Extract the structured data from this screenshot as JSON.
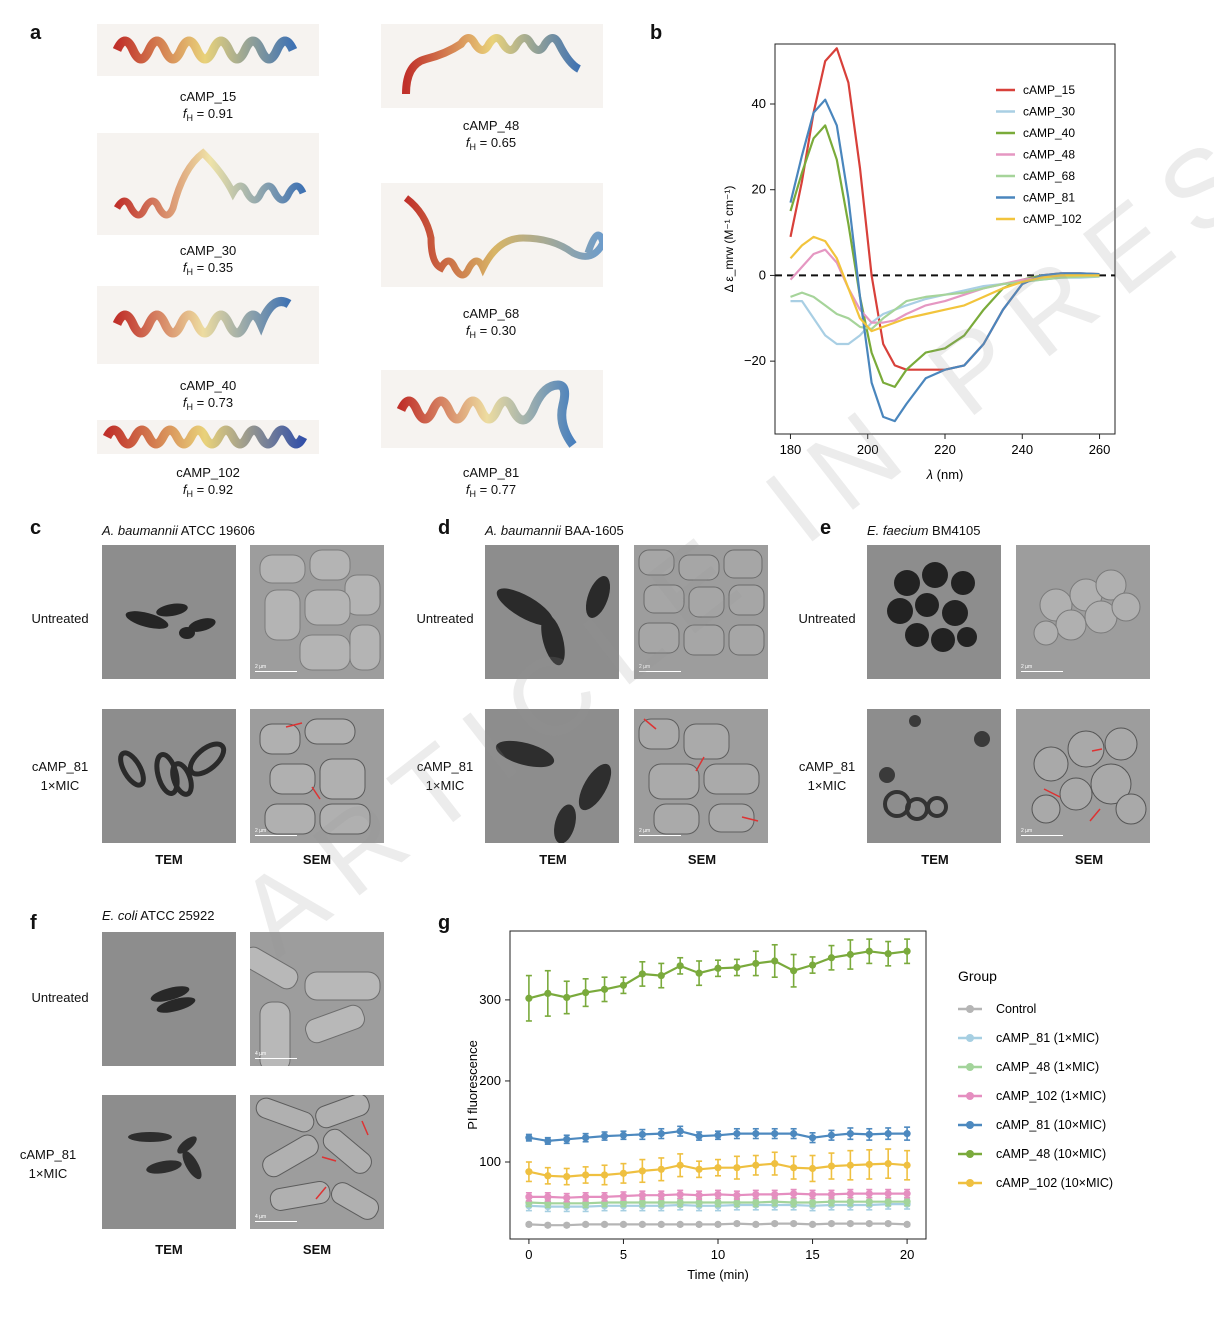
{
  "panels": {
    "a": "a",
    "b": "b",
    "c": "c",
    "d": "d",
    "e": "e",
    "f": "f",
    "g": "g"
  },
  "panel_a": {
    "structures": [
      {
        "name": "cAMP_15",
        "fh_label": "f",
        "fh_sub": "H",
        "fh_value": "= 0.91"
      },
      {
        "name": "cAMP_30",
        "fh_label": "f",
        "fh_sub": "H",
        "fh_value": "= 0.35"
      },
      {
        "name": "cAMP_40",
        "fh_label": "f",
        "fh_sub": "H",
        "fh_value": "= 0.73"
      },
      {
        "name": "cAMP_102",
        "fh_label": "f",
        "fh_sub": "H",
        "fh_value": "= 0.92"
      },
      {
        "name": "cAMP_48",
        "fh_label": "f",
        "fh_sub": "H",
        "fh_value": "= 0.65"
      },
      {
        "name": "cAMP_68",
        "fh_label": "f",
        "fh_sub": "H",
        "fh_value": "= 0.30"
      },
      {
        "name": "cAMP_81",
        "fh_label": "f",
        "fh_sub": "H",
        "fh_value": "= 0.77"
      }
    ]
  },
  "micrographs": {
    "row_untreated": "Untreated",
    "row_treated_line1": "cAMP_81",
    "row_treated_line2": "1×MIC",
    "col_tem": "TEM",
    "col_sem": "SEM",
    "scale_2um": "2 µm",
    "scale_4um": "4 µm",
    "strains": [
      {
        "genus": "A. baumannii",
        "strain": " ATCC 19606"
      },
      {
        "genus": "A. baumannii",
        "strain": " BAA-1605"
      },
      {
        "genus": "E. faecium",
        "strain": " BM4105"
      },
      {
        "genus": "E. coli",
        "strain": " ATCC 25922"
      }
    ]
  },
  "watermark": "ARTICLE IN PRESS",
  "chart_data": [
    {
      "panel": "b",
      "type": "line",
      "title": "",
      "xlabel": "λ (nm)",
      "ylabel": "Δ ε_mrw (M⁻¹ cm⁻¹)",
      "xlim": [
        176,
        264
      ],
      "ylim": [
        -37,
        54
      ],
      "xticks": [
        180,
        200,
        220,
        240,
        260
      ],
      "yticks": [
        -20,
        0,
        20,
        40
      ],
      "zero_line": "dashed",
      "legend_position": "top-right",
      "series": [
        {
          "name": "cAMP_15",
          "color": "#d8403a",
          "x": [
            180,
            183,
            186,
            189,
            192,
            195,
            198,
            201,
            204,
            207,
            210,
            215,
            220,
            225,
            230,
            235,
            240,
            245,
            250,
            255,
            260
          ],
          "y": [
            9,
            22,
            38,
            50,
            53,
            45,
            25,
            0,
            -16,
            -21,
            -22,
            -22,
            -22,
            -21,
            -16,
            -8,
            -2,
            0,
            0.5,
            0.5,
            0.3
          ]
        },
        {
          "name": "cAMP_30",
          "color": "#a9cfe4",
          "x": [
            180,
            183,
            186,
            189,
            192,
            195,
            198,
            201,
            204,
            207,
            210,
            215,
            220,
            225,
            230,
            235,
            240,
            245,
            250,
            255,
            260
          ],
          "y": [
            -6,
            -6,
            -10,
            -14,
            -16,
            -16,
            -14,
            -11,
            -9,
            -8,
            -7,
            -5.5,
            -4.5,
            -3.5,
            -2.5,
            -2,
            -1.5,
            -1,
            -0.5,
            -0.5,
            -0.3
          ]
        },
        {
          "name": "cAMP_40",
          "color": "#7aab3a",
          "x": [
            180,
            183,
            186,
            189,
            192,
            195,
            198,
            201,
            204,
            207,
            210,
            215,
            220,
            225,
            230,
            235,
            240,
            245,
            250,
            255,
            260
          ],
          "y": [
            15,
            24,
            32,
            35,
            27,
            12,
            -5,
            -18,
            -25,
            -26,
            -22,
            -18,
            -17,
            -14,
            -8,
            -3,
            -1,
            0,
            0,
            0,
            0
          ]
        },
        {
          "name": "cAMP_48",
          "color": "#e597c2",
          "x": [
            180,
            183,
            186,
            189,
            192,
            195,
            198,
            201,
            204,
            207,
            210,
            215,
            220,
            225,
            230,
            235,
            240,
            245,
            250,
            255,
            260
          ],
          "y": [
            -1,
            2,
            5,
            6,
            3,
            -3,
            -8,
            -11,
            -11,
            -10.5,
            -9,
            -7,
            -6,
            -4.5,
            -3,
            -2,
            -1,
            -0.5,
            0,
            0,
            0
          ]
        },
        {
          "name": "cAMP_68",
          "color": "#a6d49a",
          "x": [
            180,
            183,
            186,
            189,
            192,
            195,
            198,
            201,
            204,
            207,
            210,
            215,
            220,
            225,
            230,
            235,
            240,
            245,
            250,
            255,
            260
          ],
          "y": [
            -5,
            -4,
            -5,
            -7,
            -9,
            -10,
            -12,
            -12.5,
            -10,
            -8,
            -6,
            -5,
            -4.5,
            -4,
            -3,
            -2,
            -1.5,
            -1,
            -0.5,
            -0.3,
            -0.2
          ]
        },
        {
          "name": "cAMP_81",
          "color": "#4a86bd",
          "x": [
            180,
            183,
            186,
            189,
            192,
            195,
            198,
            201,
            204,
            207,
            210,
            215,
            220,
            225,
            230,
            235,
            240,
            245,
            250,
            255,
            260
          ],
          "y": [
            17,
            28,
            38,
            41,
            35,
            18,
            -5,
            -25,
            -33,
            -34,
            -30,
            -24,
            -22,
            -21,
            -16,
            -8,
            -2,
            0,
            0.5,
            0.5,
            0.3
          ]
        },
        {
          "name": "cAMP_102",
          "color": "#f2c43c",
          "x": [
            180,
            183,
            186,
            189,
            192,
            195,
            198,
            201,
            204,
            207,
            210,
            215,
            220,
            225,
            230,
            235,
            240,
            245,
            250,
            255,
            260
          ],
          "y": [
            4,
            7,
            9,
            8,
            4,
            -3,
            -10,
            -13,
            -12,
            -11,
            -10,
            -9,
            -8,
            -7,
            -5,
            -3,
            -1.5,
            -0.5,
            0,
            0,
            0
          ]
        }
      ]
    },
    {
      "panel": "g",
      "type": "line",
      "title": "",
      "xlabel": "Time (min)",
      "ylabel": "PI fluorescence",
      "xlim": [
        -1,
        21
      ],
      "ylim": [
        5,
        385
      ],
      "xticks": [
        0,
        5,
        10,
        15,
        20
      ],
      "yticks": [
        100,
        200,
        300
      ],
      "legend_title": "Group",
      "legend_position": "right",
      "x": [
        0,
        1,
        2,
        3,
        4,
        5,
        6,
        7,
        8,
        9,
        10,
        11,
        12,
        13,
        14,
        15,
        16,
        17,
        18,
        19,
        20
      ],
      "series": [
        {
          "name": "Control",
          "color": "#b5b5b5",
          "values": [
            23,
            22,
            22,
            23,
            23,
            23,
            23,
            23,
            23,
            23,
            23,
            24,
            23,
            24,
            24,
            23,
            24,
            24,
            24,
            24,
            23
          ],
          "error": [
            2,
            2,
            2,
            2,
            2,
            2,
            2,
            2,
            2,
            2,
            2,
            2,
            2,
            2,
            2,
            2,
            2,
            2,
            2,
            2,
            2
          ]
        },
        {
          "name": "cAMP_81 (1×MIC)",
          "color": "#a6cfe2",
          "values": [
            46,
            45,
            45,
            45,
            46,
            46,
            46,
            46,
            47,
            46,
            46,
            47,
            47,
            47,
            47,
            46,
            47,
            47,
            47,
            48,
            48
          ],
          "error": [
            6,
            6,
            6,
            6,
            6,
            6,
            6,
            6,
            6,
            6,
            6,
            6,
            6,
            6,
            6,
            6,
            6,
            6,
            6,
            6,
            6
          ]
        },
        {
          "name": "cAMP_48 (1×MIC)",
          "color": "#a3d49b",
          "values": [
            50,
            49,
            49,
            49,
            50,
            50,
            50,
            50,
            50,
            50,
            50,
            50,
            50,
            51,
            50,
            50,
            51,
            51,
            51,
            51,
            51
          ],
          "error": [
            5,
            5,
            5,
            5,
            5,
            5,
            5,
            5,
            5,
            5,
            5,
            5,
            5,
            5,
            5,
            5,
            5,
            5,
            5,
            5,
            5
          ]
        },
        {
          "name": "cAMP_102 (1×MIC)",
          "color": "#e58ec0",
          "values": [
            57,
            57,
            56,
            57,
            57,
            58,
            59,
            59,
            60,
            59,
            60,
            59,
            60,
            60,
            61,
            60,
            60,
            61,
            61,
            61,
            61
          ],
          "error": [
            5,
            5,
            5,
            5,
            5,
            5,
            5,
            5,
            5,
            5,
            5,
            5,
            5,
            5,
            5,
            5,
            5,
            5,
            5,
            5,
            5
          ]
        },
        {
          "name": "cAMP_81 (10×MIC)",
          "color": "#4d89bf",
          "values": [
            130,
            126,
            128,
            130,
            132,
            133,
            134,
            135,
            138,
            132,
            133,
            135,
            135,
            135,
            135,
            130,
            133,
            135,
            134,
            135,
            135
          ],
          "error": [
            4,
            4,
            5,
            5,
            5,
            5,
            6,
            6,
            6,
            5,
            5,
            6,
            6,
            6,
            6,
            6,
            6,
            7,
            7,
            7,
            8
          ]
        },
        {
          "name": "cAMP_48 (10×MIC)",
          "color": "#7aaa3c",
          "values": [
            302,
            308,
            303,
            309,
            313,
            318,
            332,
            330,
            342,
            333,
            339,
            340,
            345,
            348,
            336,
            343,
            352,
            356,
            360,
            357,
            360
          ],
          "error": [
            28,
            28,
            20,
            17,
            15,
            10,
            15,
            15,
            10,
            15,
            10,
            10,
            15,
            20,
            20,
            10,
            15,
            18,
            15,
            15,
            15
          ]
        },
        {
          "name": "cAMP_102 (10×MIC)",
          "color": "#efc040",
          "values": [
            88,
            83,
            82,
            84,
            84,
            86,
            89,
            91,
            96,
            91,
            93,
            93,
            96,
            98,
            93,
            92,
            95,
            96,
            97,
            98,
            96
          ],
          "error": [
            12,
            10,
            10,
            10,
            12,
            12,
            14,
            14,
            14,
            10,
            10,
            14,
            12,
            14,
            14,
            16,
            16,
            18,
            18,
            18,
            18
          ]
        }
      ]
    }
  ]
}
